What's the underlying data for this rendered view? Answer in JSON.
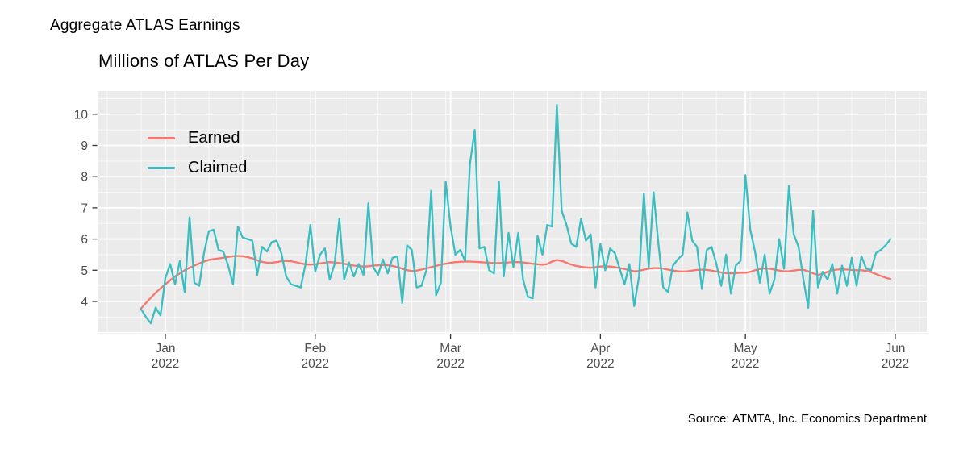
{
  "figure": {
    "title": "Aggregate ATLAS Earnings",
    "subtitle": "Millions of ATLAS Per Day",
    "source_note": "Source: ATMTA, Inc. Economics Department"
  },
  "colors": {
    "earned": "#F8766D",
    "claimed": "#3CBEC1",
    "panel_bg": "#EBEBEB",
    "grid_major": "#FFFFFF",
    "axis_text": "#4D4D4D",
    "tick_mark": "#333333"
  },
  "legend": {
    "items": [
      {
        "label": "Earned",
        "color": "#F8766D"
      },
      {
        "label": "Claimed",
        "color": "#3CBEC1"
      }
    ]
  },
  "axes": {
    "y": {
      "ticks": [
        4,
        5,
        6,
        7,
        8,
        9,
        10
      ],
      "minor_step": 0.5
    },
    "x": {
      "ticks": [
        {
          "month": "Jan",
          "year": "2022",
          "day_offset": 0
        },
        {
          "month": "Feb",
          "year": "2022",
          "day_offset": 31
        },
        {
          "month": "Mar",
          "year": "2022",
          "day_offset": 59
        },
        {
          "month": "Apr",
          "year": "2022",
          "day_offset": 90
        },
        {
          "month": "May",
          "year": "2022",
          "day_offset": 120
        },
        {
          "month": "Jun",
          "year": "2022",
          "day_offset": 151
        }
      ],
      "minor": "weekly"
    }
  },
  "chart_data": {
    "type": "line",
    "title": "Millions of ATLAS Per Day",
    "xlabel": "",
    "ylabel": "",
    "x_unit": "day",
    "x_start_date": "2021-12-27",
    "x_end_date": "2022-05-31",
    "first_point_day_offset_from_jan1": -5,
    "ylim": [
      3.0,
      10.7
    ],
    "grid": true,
    "legend_position": "inside-top-left",
    "series": [
      {
        "name": "Earned",
        "color": "#F8766D",
        "values": [
          3.78,
          3.95,
          4.12,
          4.28,
          4.42,
          4.55,
          4.68,
          4.8,
          4.9,
          5.0,
          5.08,
          5.15,
          5.22,
          5.28,
          5.33,
          5.36,
          5.38,
          5.4,
          5.43,
          5.45,
          5.46,
          5.45,
          5.42,
          5.38,
          5.32,
          5.27,
          5.24,
          5.24,
          5.26,
          5.29,
          5.3,
          5.29,
          5.26,
          5.22,
          5.19,
          5.18,
          5.19,
          5.22,
          5.24,
          5.26,
          5.25,
          5.23,
          5.21,
          5.18,
          5.15,
          5.13,
          5.12,
          5.13,
          5.15,
          5.16,
          5.17,
          5.16,
          5.14,
          5.1,
          5.05,
          5.0,
          4.98,
          4.99,
          5.02,
          5.06,
          5.1,
          5.14,
          5.18,
          5.21,
          5.24,
          5.26,
          5.27,
          5.28,
          5.28,
          5.27,
          5.26,
          5.25,
          5.24,
          5.23,
          5.23,
          5.24,
          5.25,
          5.26,
          5.26,
          5.25,
          5.23,
          5.21,
          5.19,
          5.18,
          5.2,
          5.28,
          5.33,
          5.3,
          5.24,
          5.18,
          5.14,
          5.11,
          5.09,
          5.08,
          5.1,
          5.12,
          5.13,
          5.12,
          5.1,
          5.07,
          5.04,
          5.0,
          4.97,
          4.98,
          5.02,
          5.05,
          5.07,
          5.07,
          5.05,
          5.02,
          4.99,
          4.97,
          4.96,
          4.97,
          4.99,
          5.01,
          5.02,
          5.01,
          4.99,
          4.96,
          4.93,
          4.91,
          4.9,
          4.91,
          4.92,
          4.92,
          4.95,
          5.0,
          5.04,
          5.06,
          5.05,
          5.02,
          4.99,
          4.97,
          4.97,
          4.99,
          5.01,
          5.01,
          4.97,
          4.9,
          4.85,
          4.88,
          4.95,
          5.0,
          5.02,
          5.03,
          5.02,
          5.01,
          5.0,
          5.0,
          4.98,
          4.94,
          4.88,
          4.82,
          4.76,
          4.72
        ]
      },
      {
        "name": "Claimed",
        "color": "#3CBEC1",
        "values": [
          3.75,
          3.5,
          3.3,
          3.8,
          3.55,
          4.75,
          5.2,
          4.55,
          5.3,
          4.3,
          6.7,
          4.6,
          4.5,
          5.55,
          6.25,
          6.3,
          5.65,
          5.6,
          5.15,
          4.55,
          6.4,
          6.05,
          6.0,
          5.95,
          4.85,
          5.75,
          5.6,
          5.9,
          5.95,
          5.55,
          4.8,
          4.55,
          4.5,
          4.45,
          5.2,
          6.45,
          4.95,
          5.5,
          5.7,
          4.7,
          5.2,
          6.65,
          4.7,
          5.25,
          4.8,
          5.2,
          4.85,
          7.15,
          5.1,
          4.85,
          5.35,
          4.9,
          5.4,
          5.45,
          3.95,
          5.8,
          5.65,
          4.45,
          4.5,
          5.0,
          7.55,
          4.2,
          4.6,
          7.85,
          6.4,
          5.5,
          5.65,
          5.3,
          8.4,
          9.5,
          5.7,
          5.75,
          5.0,
          4.9,
          7.85,
          4.8,
          6.2,
          5.1,
          6.2,
          4.7,
          4.15,
          4.1,
          6.1,
          5.5,
          6.45,
          6.4,
          10.3,
          6.9,
          6.45,
          5.85,
          5.75,
          6.65,
          5.95,
          6.15,
          4.45,
          5.85,
          5.0,
          5.7,
          5.55,
          5.05,
          4.55,
          5.2,
          3.85,
          4.8,
          7.45,
          5.1,
          7.5,
          5.85,
          4.45,
          4.3,
          5.15,
          5.35,
          5.5,
          6.85,
          5.95,
          5.75,
          4.4,
          5.65,
          5.75,
          5.2,
          4.5,
          5.5,
          4.25,
          5.15,
          5.3,
          8.05,
          6.3,
          5.6,
          4.6,
          5.5,
          4.25,
          4.7,
          6.0,
          5.05,
          7.7,
          6.15,
          5.75,
          4.7,
          3.8,
          6.9,
          4.45,
          4.95,
          4.7,
          5.2,
          4.25,
          5.15,
          4.5,
          5.4,
          4.5,
          5.45,
          5.05,
          5.0,
          5.55,
          5.65,
          5.8,
          6.0
        ]
      }
    ]
  }
}
